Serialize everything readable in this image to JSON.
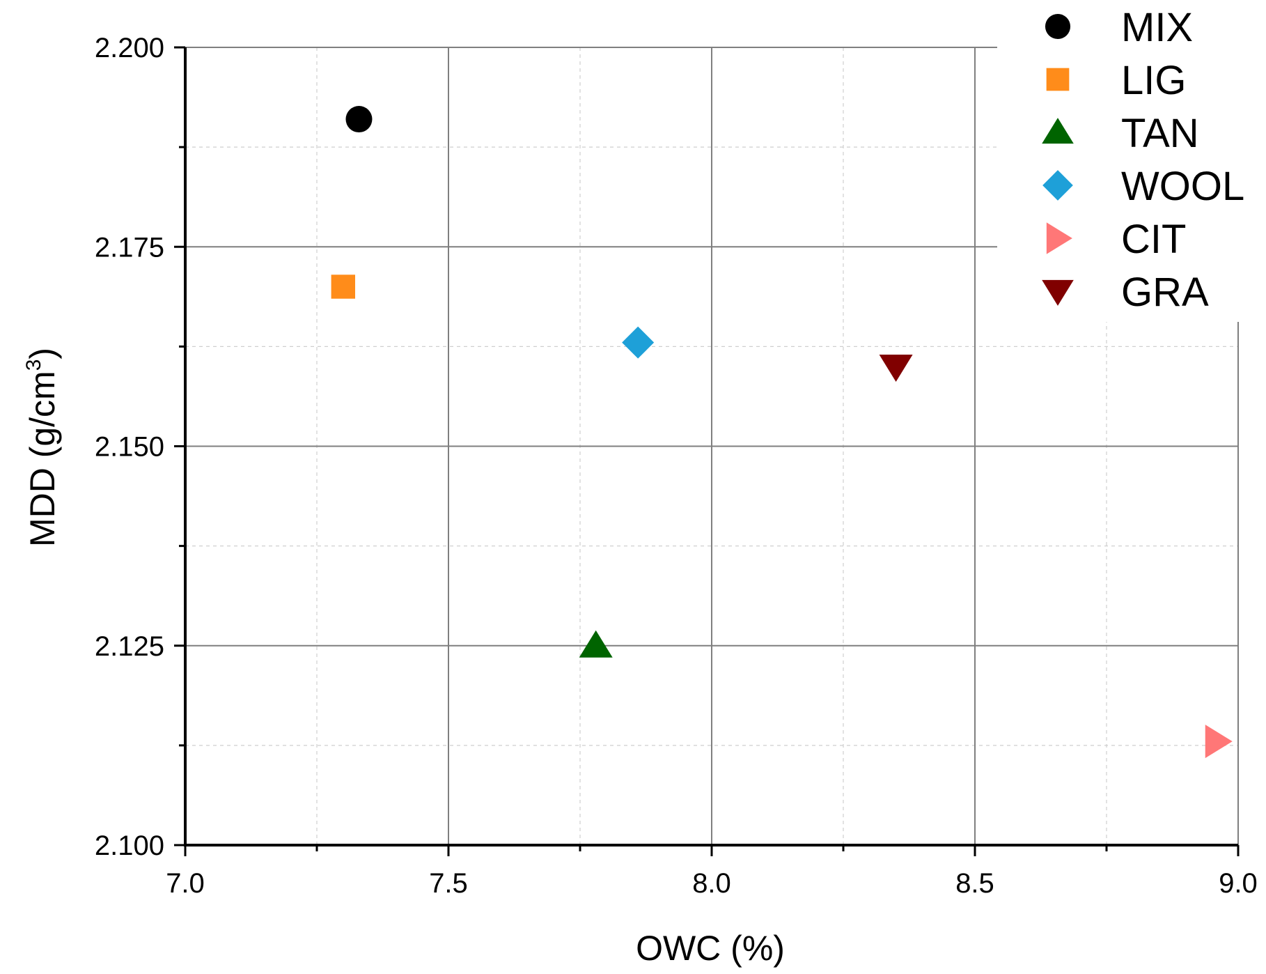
{
  "chart_data": {
    "type": "scatter",
    "title": "",
    "xlabel": "OWC (%)",
    "ylabel_main": "MDD (g/cm",
    "ylabel_sup": "3",
    "ylabel_close": ")",
    "xlim": [
      7.0,
      9.0
    ],
    "ylim": [
      2.1,
      2.2
    ],
    "x_ticks": [
      7.0,
      7.5,
      8.0,
      8.5,
      9.0
    ],
    "x_tick_labels": [
      "7.0",
      "7.5",
      "8.0",
      "8.5",
      "9.0"
    ],
    "x_minor_ticks": [
      7.25,
      7.75,
      8.25,
      8.75
    ],
    "y_ticks": [
      2.1,
      2.125,
      2.15,
      2.175,
      2.2
    ],
    "y_tick_labels": [
      "2.100",
      "2.125",
      "2.150",
      "2.175",
      "2.200"
    ],
    "y_minor_ticks": [
      2.1125,
      2.1375,
      2.1625,
      2.1875
    ],
    "grid": true,
    "legend_position": "top-right",
    "series": [
      {
        "name": "MIX",
        "marker": "circle",
        "color": "#000000",
        "x": 7.33,
        "y": 2.191
      },
      {
        "name": "LIG",
        "marker": "square",
        "color": "#FF8C1A",
        "x": 7.3,
        "y": 2.17
      },
      {
        "name": "TAN",
        "marker": "triangle-up",
        "color": "#006400",
        "x": 7.78,
        "y": 2.125
      },
      {
        "name": "WOOL",
        "marker": "diamond",
        "color": "#1EA0D8",
        "x": 7.86,
        "y": 2.163
      },
      {
        "name": "CIT",
        "marker": "triangle-right",
        "color": "#FF7777",
        "x": 8.96,
        "y": 2.113
      },
      {
        "name": "GRA",
        "marker": "triangle-down",
        "color": "#800000",
        "x": 8.35,
        "y": 2.16
      }
    ]
  }
}
